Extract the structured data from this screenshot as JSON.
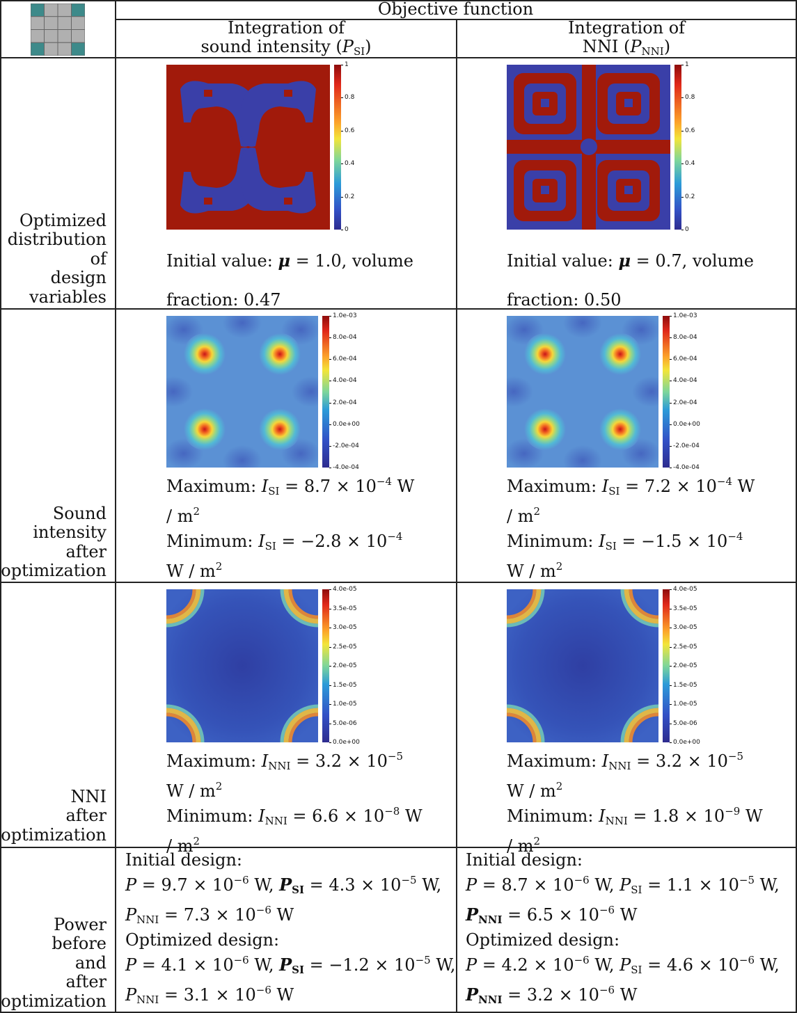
{
  "header": {
    "objective_function": "Objective function",
    "col1_line1": "Integration of",
    "col1_line2": "sound intensity (",
    "col1_sym": "P",
    "col1_sub": "SI",
    "col1_close": ")",
    "col2_line1": "Integration of",
    "col2_line2": "NNI (",
    "col2_sym": "P",
    "col2_sub": "NNI",
    "col2_close": ")"
  },
  "rows": [
    {
      "label": "Optimized\ndistribution\nof\ndesign\nvariables"
    },
    {
      "label": "Sound\nintensity\nafter\noptimization"
    },
    {
      "label": "NNI\nafter\noptimization"
    },
    {
      "label": "Power\nbefore\nand\nafter\noptimization"
    }
  ],
  "design": {
    "colorbar_ticks": [
      "1",
      "0.8",
      "0.6",
      "0.4",
      "0.2",
      "0"
    ],
    "si": {
      "caption_line1_a": "Initial value: ",
      "mu_sym": "μ",
      "caption_line1_b": " = 1.0, volume",
      "caption_line2": "fraction: 0.47"
    },
    "nni": {
      "caption_line1_a": "Initial value: ",
      "mu_sym": "μ",
      "caption_line1_b": " = 0.7, volume",
      "caption_line2": "fraction: 0.50"
    }
  },
  "sound_intensity": {
    "colorbar_ticks": [
      "1.0e-03",
      "8.0e-04",
      "6.0e-04",
      "4.0e-04",
      "2.0e-04",
      "0.0e+00",
      "-2.0e-04",
      "-4.0e-04"
    ],
    "si": {
      "max_label": "Maximum: ",
      "max_val": " = 8.7 × 10",
      "max_exp": "−4",
      "max_unit": " W",
      "max_unit2": "/ m",
      "min_label": "Minimum: ",
      "min_val": " = −2.8 × 10",
      "min_exp": "−4",
      "min_unit": "W / m"
    },
    "nni": {
      "max_label": "Maximum: ",
      "max_val": " = 7.2 × 10",
      "max_exp": "−4",
      "max_unit": " W",
      "max_unit2": "/ m",
      "min_label": "Minimum: ",
      "min_val": " = −1.5 × 10",
      "min_exp": "−4",
      "min_unit": "W / m"
    }
  },
  "nni_field": {
    "colorbar_ticks": [
      "4.0e-05",
      "3.5e-05",
      "3.0e-05",
      "2.5e-05",
      "2.0e-05",
      "1.5e-05",
      "1.0e-05",
      "5.0e-06",
      "0.0e+00"
    ],
    "si": {
      "max_label": "Maximum: ",
      "max_val": " = 3.2 × 10",
      "max_exp": "−5",
      "max_unit": "W / m",
      "min_label": "Minimum: ",
      "min_val": " = 6.6 × 10",
      "min_exp": "−8",
      "min_unit": " W",
      "min_unit2": "/ m"
    },
    "nni": {
      "max_label": "Maximum: ",
      "max_val": " = 3.2 × 10",
      "max_exp": "−5",
      "max_unit": "W / m",
      "min_label": "Minimum: ",
      "min_val": " = 1.8 × 10",
      "min_exp": "−9",
      "min_unit": " W",
      "min_unit2": "/ m"
    }
  },
  "power": {
    "si": {
      "initial_title": "Initial design:",
      "initial_l1": "P = 9.7 × 10",
      "initial_l1_exp": "−6",
      "initial_l1_b": " W, ",
      "initial_psi": " = 4.3 × 10",
      "initial_psi_exp": "−5",
      "initial_psi_unit": " W,",
      "initial_l2": " = 7.3 × 10",
      "initial_l2_exp": "−6",
      "initial_l2_unit": " W",
      "optimized_title": "Optimized design:",
      "opt_l1": "P = 4.1 × 10",
      "opt_l1_exp": "−6",
      "opt_l1_b": " W, ",
      "opt_psi": " = −1.2 × 10",
      "opt_psi_exp": "−5",
      "opt_psi_unit": " W,",
      "opt_l2": " = 3.1 × 10",
      "opt_l2_exp": "−6",
      "opt_l2_unit": " W"
    },
    "nni": {
      "initial_title": "Initial design:",
      "initial_l1": "P = 8.7 × 10",
      "initial_l1_exp": "−6",
      "initial_l1_b": " W, ",
      "initial_psi": " = 1.1 × 10",
      "initial_psi_exp": "−5",
      "initial_psi_unit": " W,",
      "initial_l2": " = 6.5 × 10",
      "initial_l2_exp": "−6",
      "initial_l2_unit": " W",
      "optimized_title": "Optimized design:",
      "opt_l1": "P = 4.2 × 10",
      "opt_l1_exp": "−6",
      "opt_l1_b": " W, ",
      "opt_psi": " = 4.6 × 10",
      "opt_psi_exp": "−6",
      "opt_psi_unit": " W,",
      "opt_l2": " = 3.2 × 10",
      "opt_l2_exp": "−6",
      "opt_l2_unit": " W"
    }
  },
  "symbols": {
    "I": "I",
    "SI": "SI",
    "NNI": "NNI",
    "P": "P",
    "two": "2"
  },
  "colors": {
    "dark_red": "#a11a0b",
    "dark_blue": "#3a3fa8",
    "field_bg": "#5b91d4",
    "teal": "#3d8a8a",
    "gray": "#b0b0b0"
  }
}
